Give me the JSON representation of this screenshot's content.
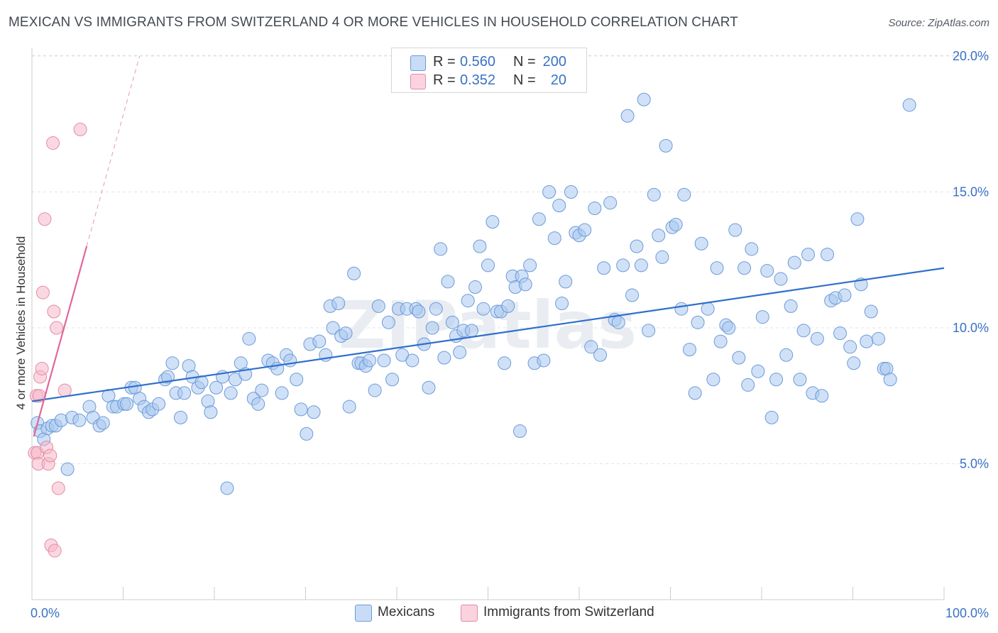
{
  "header": {
    "title": "MEXICAN VS IMMIGRANTS FROM SWITZERLAND 4 OR MORE VEHICLES IN HOUSEHOLD CORRELATION CHART",
    "source": "Source: ZipAtlas.com"
  },
  "legend_top": {
    "rows": [
      {
        "r_label": "R =",
        "r_value": "0.560",
        "n_label": "N =",
        "n_value": "200",
        "color": "#a9c8f0"
      },
      {
        "r_label": "R =",
        "r_value": "0.352",
        "n_label": "N =",
        "n_value": "20",
        "color": "#f5b8c9"
      }
    ]
  },
  "legend_bottom": {
    "items": [
      {
        "label": "Mexicans",
        "color": "#a9c8f0"
      },
      {
        "label": "Immigrants from Switzerland",
        "color": "#f5b8c9"
      }
    ]
  },
  "watermark": "ZIPatlas",
  "chart_data": {
    "type": "scatter",
    "title": "MEXICAN VS IMMIGRANTS FROM SWITZERLAND 4 OR MORE VEHICLES IN HOUSEHOLD CORRELATION CHART",
    "xlabel": "",
    "ylabel": "4 or more Vehicles in Household",
    "xlim": [
      0,
      100
    ],
    "ylim": [
      0,
      20.5
    ],
    "x_tick_labels": [
      "0.0%",
      "100.0%"
    ],
    "y_ticks": [
      5,
      10,
      15,
      20
    ],
    "y_tick_labels": [
      "5.0%",
      "10.0%",
      "15.0%",
      "20.0%"
    ],
    "grid": true,
    "legend_position": "top-center",
    "series": [
      {
        "name": "Mexicans",
        "color": "#a9c8f0",
        "stroke": "#6b9ad8",
        "trend": {
          "x": [
            0,
            100
          ],
          "y": [
            7.3,
            12.2
          ],
          "color": "#2f6fcb"
        },
        "points": [
          [
            0.6,
            6.5
          ],
          [
            0.9,
            6.2
          ],
          [
            1.3,
            5.9
          ],
          [
            1.7,
            6.3
          ],
          [
            2.2,
            6.4
          ],
          [
            2.6,
            6.4
          ],
          [
            3.2,
            6.6
          ],
          [
            3.9,
            4.8
          ],
          [
            4.4,
            6.7
          ],
          [
            5.2,
            6.6
          ],
          [
            6.3,
            7.1
          ],
          [
            6.7,
            6.7
          ],
          [
            7.4,
            6.4
          ],
          [
            7.8,
            6.5
          ],
          [
            8.4,
            7.5
          ],
          [
            8.9,
            7.1
          ],
          [
            9.3,
            7.1
          ],
          [
            10.1,
            7.2
          ],
          [
            10.4,
            7.2
          ],
          [
            10.9,
            7.8
          ],
          [
            11.3,
            7.8
          ],
          [
            11.8,
            7.4
          ],
          [
            12.3,
            7.1
          ],
          [
            12.8,
            6.9
          ],
          [
            13.2,
            7.0
          ],
          [
            13.9,
            7.2
          ],
          [
            14.6,
            8.1
          ],
          [
            14.9,
            8.2
          ],
          [
            15.4,
            8.7
          ],
          [
            15.8,
            7.6
          ],
          [
            16.3,
            6.7
          ],
          [
            16.7,
            7.6
          ],
          [
            17.2,
            8.6
          ],
          [
            17.6,
            8.2
          ],
          [
            18.2,
            7.8
          ],
          [
            18.6,
            8.0
          ],
          [
            19.3,
            7.3
          ],
          [
            19.6,
            6.9
          ],
          [
            20.2,
            7.8
          ],
          [
            20.9,
            8.2
          ],
          [
            21.4,
            4.1
          ],
          [
            21.8,
            7.6
          ],
          [
            22.3,
            8.1
          ],
          [
            22.9,
            8.7
          ],
          [
            23.4,
            8.3
          ],
          [
            23.8,
            9.6
          ],
          [
            24.3,
            7.4
          ],
          [
            24.8,
            7.2
          ],
          [
            25.2,
            7.7
          ],
          [
            25.9,
            8.8
          ],
          [
            26.4,
            8.7
          ],
          [
            26.9,
            8.5
          ],
          [
            27.4,
            7.6
          ],
          [
            27.9,
            9.0
          ],
          [
            28.3,
            8.8
          ],
          [
            29.0,
            8.1
          ],
          [
            29.5,
            7.0
          ],
          [
            30.1,
            6.1
          ],
          [
            30.5,
            9.4
          ],
          [
            30.9,
            6.9
          ],
          [
            31.5,
            9.5
          ],
          [
            32.2,
            9.0
          ],
          [
            32.7,
            10.8
          ],
          [
            33.0,
            10.0
          ],
          [
            33.6,
            10.9
          ],
          [
            33.9,
            9.7
          ],
          [
            34.4,
            9.8
          ],
          [
            34.8,
            7.1
          ],
          [
            35.3,
            12.0
          ],
          [
            35.8,
            8.7
          ],
          [
            36.1,
            8.7
          ],
          [
            36.6,
            8.6
          ],
          [
            37.0,
            8.8
          ],
          [
            37.6,
            7.7
          ],
          [
            38.0,
            10.8
          ],
          [
            38.6,
            8.8
          ],
          [
            39.1,
            10.2
          ],
          [
            39.5,
            8.1
          ],
          [
            40.2,
            10.7
          ],
          [
            40.6,
            9.0
          ],
          [
            41.1,
            10.7
          ],
          [
            41.7,
            8.8
          ],
          [
            42.1,
            10.7
          ],
          [
            42.4,
            10.6
          ],
          [
            43.0,
            9.4
          ],
          [
            43.5,
            7.8
          ],
          [
            43.9,
            10.0
          ],
          [
            44.3,
            10.7
          ],
          [
            44.8,
            12.9
          ],
          [
            45.2,
            8.9
          ],
          [
            45.6,
            11.7
          ],
          [
            46.1,
            10.2
          ],
          [
            46.5,
            9.7
          ],
          [
            46.9,
            9.1
          ],
          [
            47.3,
            9.9
          ],
          [
            47.8,
            11.0
          ],
          [
            48.2,
            9.9
          ],
          [
            48.6,
            11.5
          ],
          [
            49.1,
            13.0
          ],
          [
            49.5,
            10.7
          ],
          [
            50.0,
            12.3
          ],
          [
            50.5,
            13.9
          ],
          [
            51.0,
            10.6
          ],
          [
            51.4,
            10.6
          ],
          [
            51.8,
            8.7
          ],
          [
            52.2,
            10.8
          ],
          [
            52.7,
            11.9
          ],
          [
            53.0,
            11.5
          ],
          [
            53.5,
            6.2
          ],
          [
            53.7,
            11.9
          ],
          [
            54.1,
            11.6
          ],
          [
            54.6,
            12.3
          ],
          [
            55.1,
            8.7
          ],
          [
            55.6,
            14.0
          ],
          [
            56.1,
            8.8
          ],
          [
            56.7,
            15.0
          ],
          [
            57.3,
            13.3
          ],
          [
            57.8,
            14.5
          ],
          [
            58.1,
            10.9
          ],
          [
            58.5,
            11.7
          ],
          [
            59.1,
            15.0
          ],
          [
            59.6,
            13.5
          ],
          [
            60.0,
            13.4
          ],
          [
            60.6,
            13.6
          ],
          [
            61.3,
            9.3
          ],
          [
            61.7,
            14.4
          ],
          [
            62.3,
            9.0
          ],
          [
            62.7,
            12.2
          ],
          [
            63.4,
            14.6
          ],
          [
            63.9,
            10.3
          ],
          [
            64.3,
            10.2
          ],
          [
            64.8,
            12.3
          ],
          [
            65.3,
            17.8
          ],
          [
            65.8,
            11.2
          ],
          [
            66.3,
            13.0
          ],
          [
            66.8,
            12.3
          ],
          [
            67.1,
            18.4
          ],
          [
            67.6,
            9.9
          ],
          [
            68.2,
            14.9
          ],
          [
            68.7,
            13.4
          ],
          [
            69.1,
            12.6
          ],
          [
            69.5,
            16.7
          ],
          [
            70.2,
            13.7
          ],
          [
            70.6,
            13.8
          ],
          [
            71.2,
            10.7
          ],
          [
            71.5,
            14.9
          ],
          [
            72.1,
            9.2
          ],
          [
            72.7,
            7.6
          ],
          [
            73.0,
            10.2
          ],
          [
            73.4,
            13.1
          ],
          [
            74.1,
            10.7
          ],
          [
            74.7,
            8.1
          ],
          [
            75.1,
            12.2
          ],
          [
            75.5,
            9.5
          ],
          [
            76.1,
            10.1
          ],
          [
            76.4,
            10.0
          ],
          [
            77.1,
            13.6
          ],
          [
            77.5,
            8.9
          ],
          [
            78.1,
            12.2
          ],
          [
            78.5,
            7.9
          ],
          [
            78.9,
            12.9
          ],
          [
            79.6,
            8.4
          ],
          [
            80.1,
            10.4
          ],
          [
            80.6,
            12.1
          ],
          [
            81.1,
            6.7
          ],
          [
            81.6,
            8.1
          ],
          [
            82.1,
            11.8
          ],
          [
            82.7,
            9.0
          ],
          [
            83.2,
            10.8
          ],
          [
            83.6,
            12.4
          ],
          [
            84.2,
            8.1
          ],
          [
            84.6,
            9.9
          ],
          [
            85.1,
            12.7
          ],
          [
            85.6,
            7.6
          ],
          [
            86.1,
            9.6
          ],
          [
            86.6,
            7.5
          ],
          [
            87.2,
            12.7
          ],
          [
            87.6,
            11.0
          ],
          [
            88.1,
            11.1
          ],
          [
            88.6,
            9.8
          ],
          [
            89.1,
            11.2
          ],
          [
            89.7,
            9.3
          ],
          [
            90.1,
            8.7
          ],
          [
            90.5,
            14.0
          ],
          [
            90.9,
            11.6
          ],
          [
            91.5,
            9.5
          ],
          [
            92.0,
            10.6
          ],
          [
            92.8,
            9.6
          ],
          [
            93.4,
            8.5
          ],
          [
            93.7,
            8.5
          ],
          [
            94.1,
            8.1
          ],
          [
            96.2,
            18.2
          ]
        ]
      },
      {
        "name": "Immigrants from Switzerland",
        "color": "#f5b8c9",
        "stroke": "#e48aa6",
        "trend": {
          "x": [
            0.2,
            6.0
          ],
          "y": [
            6.0,
            13.0
          ],
          "dashed_to": [
            11.8,
            20.0
          ],
          "color": "#e0679a"
        },
        "points": [
          [
            0.3,
            5.4
          ],
          [
            0.5,
            7.5
          ],
          [
            0.6,
            5.4
          ],
          [
            0.7,
            5.0
          ],
          [
            0.8,
            7.5
          ],
          [
            0.9,
            8.2
          ],
          [
            1.1,
            8.5
          ],
          [
            1.2,
            11.3
          ],
          [
            1.4,
            14.0
          ],
          [
            1.6,
            5.6
          ],
          [
            1.8,
            5.0
          ],
          [
            2.0,
            5.3
          ],
          [
            2.1,
            2.0
          ],
          [
            2.3,
            16.8
          ],
          [
            2.4,
            10.6
          ],
          [
            2.5,
            1.8
          ],
          [
            2.7,
            10.0
          ],
          [
            2.9,
            4.1
          ],
          [
            3.6,
            7.7
          ],
          [
            5.3,
            17.3
          ]
        ]
      }
    ]
  }
}
